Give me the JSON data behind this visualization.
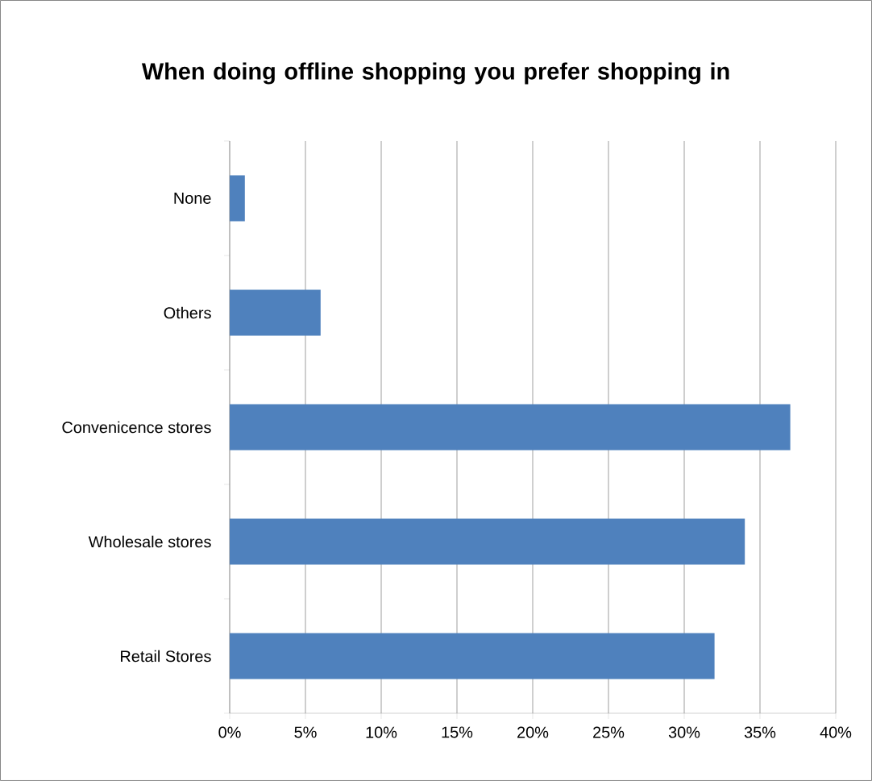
{
  "chart_data": {
    "type": "bar",
    "orientation": "horizontal",
    "title": "When doing offline shopping you prefer shopping in",
    "categories": [
      "None",
      "Others",
      "Convenicence stores",
      "Wholesale stores",
      "Retail Stores"
    ],
    "values": [
      1,
      6,
      37,
      34,
      32
    ],
    "color": "#4f81bd",
    "xlim": [
      0,
      40
    ],
    "xticks": [
      {
        "value": 0,
        "label": "0%"
      },
      {
        "value": 5,
        "label": "5%"
      },
      {
        "value": 10,
        "label": "10%"
      },
      {
        "value": 15,
        "label": "15%"
      },
      {
        "value": 20,
        "label": "20%"
      },
      {
        "value": 25,
        "label": "25%"
      },
      {
        "value": 30,
        "label": "30%"
      },
      {
        "value": 35,
        "label": "35%"
      },
      {
        "value": 40,
        "label": "40%"
      }
    ],
    "grid": "x"
  }
}
